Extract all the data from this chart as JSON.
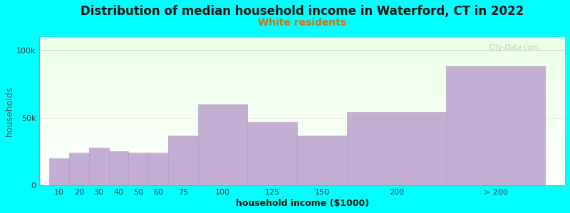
{
  "title": "Distribution of median household income in Waterford, CT in 2022",
  "subtitle": "White residents",
  "xlabel": "household income ($1000)",
  "ylabel": "households",
  "background_color": "#00FFFF",
  "bar_color": "#c4aed4",
  "bar_edge_color": "#b09ac0",
  "categories": [
    "10",
    "20",
    "30",
    "40",
    "50",
    "60",
    "75",
    "100",
    "125",
    "150",
    "200",
    "> 200"
  ],
  "values": [
    20000,
    24000,
    28000,
    25000,
    24000,
    24000,
    37000,
    60000,
    47000,
    37000,
    54000,
    88000
  ],
  "bar_widths": [
    10,
    10,
    10,
    10,
    10,
    10,
    15,
    25,
    25,
    25,
    50,
    50
  ],
  "bar_lefts": [
    5,
    15,
    25,
    35,
    45,
    55,
    65,
    80,
    105,
    130,
    155,
    205
  ],
  "xlim": [
    0,
    265
  ],
  "ylim": [
    0,
    110000
  ],
  "title_fontsize": 12,
  "subtitle_fontsize": 10,
  "subtitle_color": "#b87820",
  "axis_label_fontsize": 9,
  "tick_fontsize": 8,
  "watermark": "City-Data.com",
  "yticks": [
    0,
    50000,
    100000
  ],
  "ytick_labels": [
    "0",
    "50k",
    "100k"
  ]
}
